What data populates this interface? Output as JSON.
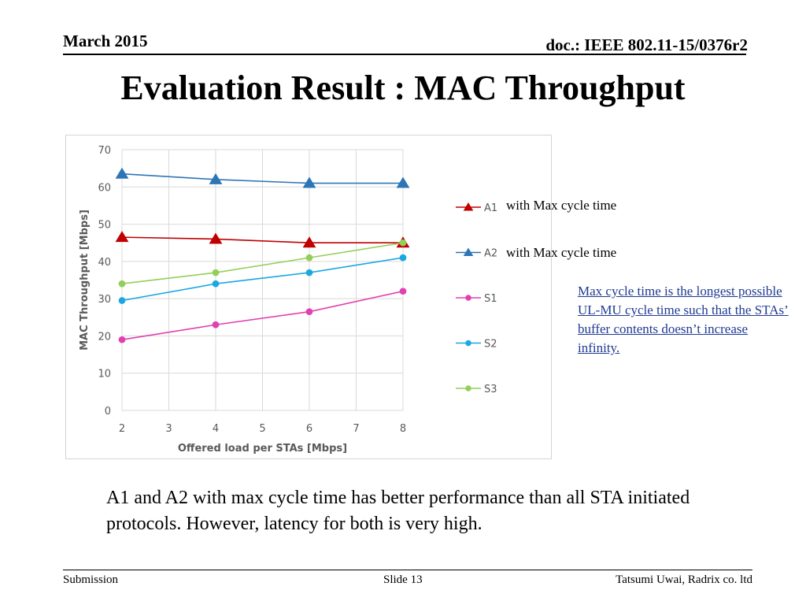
{
  "header": {
    "date": "March 2015",
    "doc": "doc.: IEEE 802.11-15/0376r2"
  },
  "title": "Evaluation Result : MAC Throughput",
  "notes": {
    "a1": "with Max cycle time",
    "a2": "with Max cycle time",
    "definition": "Max cycle time is the longest possible UL-MU cycle time such that  the STAs’ buffer contents doesn’t increase infinity."
  },
  "summary": "A1 and A2 with max cycle time has better performance than all STA initiated protocols. However, latency for both is very high.",
  "footer": {
    "left": "Submission",
    "center": "Slide 13",
    "right": "Tatsumi Uwai, Radrix co. ltd"
  },
  "chart_data": {
    "type": "line",
    "xlabel": "Offered load per STAs [Mbps]",
    "ylabel": "MAC Throughput [Mbps]",
    "xlim": [
      2,
      8
    ],
    "ylim": [
      0,
      70
    ],
    "x_ticks": [
      2,
      3,
      4,
      5,
      6,
      7,
      8
    ],
    "y_ticks": [
      0,
      10,
      20,
      30,
      40,
      50,
      60,
      70
    ],
    "grid": "vertical and horizontal",
    "legend_position": "right",
    "series": [
      {
        "name": "A1",
        "color": "#c00000",
        "marker": "triangle",
        "x": [
          2,
          4,
          6,
          8
        ],
        "y": [
          46.5,
          46,
          45,
          45
        ]
      },
      {
        "name": "A2",
        "color": "#2e75b6",
        "marker": "triangle",
        "x": [
          2,
          4,
          6,
          8
        ],
        "y": [
          63.5,
          62,
          61,
          61
        ]
      },
      {
        "name": "S1",
        "color": "#e040b0",
        "marker": "circle",
        "x": [
          2,
          4,
          6,
          8
        ],
        "y": [
          19,
          23,
          26.5,
          32
        ]
      },
      {
        "name": "S2",
        "color": "#1ba8e0",
        "marker": "circle",
        "x": [
          2,
          4,
          6,
          8
        ],
        "y": [
          29.5,
          34,
          37,
          41
        ]
      },
      {
        "name": "S3",
        "color": "#92cf5a",
        "marker": "circle",
        "x": [
          2,
          4,
          6,
          8
        ],
        "y": [
          34,
          37,
          41,
          45
        ]
      }
    ]
  }
}
